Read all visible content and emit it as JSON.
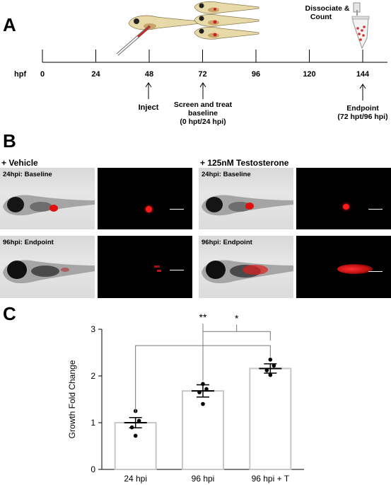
{
  "panel_a": {
    "letter": "A",
    "axis_label": "hpf",
    "ticks": [
      "0",
      "24",
      "48",
      "72",
      "96",
      "120",
      "144"
    ],
    "events": [
      {
        "id": "inject",
        "lines": [
          "Inject"
        ]
      },
      {
        "id": "screen",
        "lines": [
          "Screen and treat",
          "baseline",
          "(0 hpt/24 hpi)"
        ]
      },
      {
        "id": "endpoint",
        "lines": [
          "Endpoint",
          "(72 hpt/96 hpi)"
        ]
      }
    ],
    "dissociate_lines": [
      "Dissociate &",
      "Count"
    ]
  },
  "panel_b": {
    "letter": "B",
    "groups": [
      {
        "title": "+ Vehicle",
        "rows": [
          {
            "tag_bold": "24hpi:",
            "tag_rest": "Baseline"
          },
          {
            "tag_bold": "96hpi:",
            "tag_rest": "Endpoint"
          }
        ]
      },
      {
        "title": "+ 125nM Testosterone",
        "rows": [
          {
            "tag_bold": "24hpi:",
            "tag_rest": "Baseline"
          },
          {
            "tag_bold": "96hpi:",
            "tag_rest": "Endpoint"
          }
        ]
      }
    ]
  },
  "panel_c": {
    "letter": "C",
    "significance": [
      "**",
      "*"
    ]
  },
  "chart_data": {
    "type": "bar",
    "categories": [
      "24 hpi",
      "96 hpi",
      "96 hpi + T"
    ],
    "values": [
      1.0,
      1.68,
      2.16
    ],
    "errors": [
      0.11,
      0.13,
      0.1
    ],
    "points": [
      [
        0.72,
        0.9,
        1.04,
        1.25
      ],
      [
        1.4,
        1.65,
        1.72,
        1.83
      ],
      [
        2.02,
        2.12,
        2.22,
        2.35
      ]
    ],
    "ylabel": "Growth Fold Change",
    "xlabel": "",
    "ylim": [
      0,
      3
    ],
    "yticks": [
      0,
      1,
      2,
      3
    ],
    "bar_color": "#ffffff",
    "bar_edge_color": "#c8c8c8"
  }
}
